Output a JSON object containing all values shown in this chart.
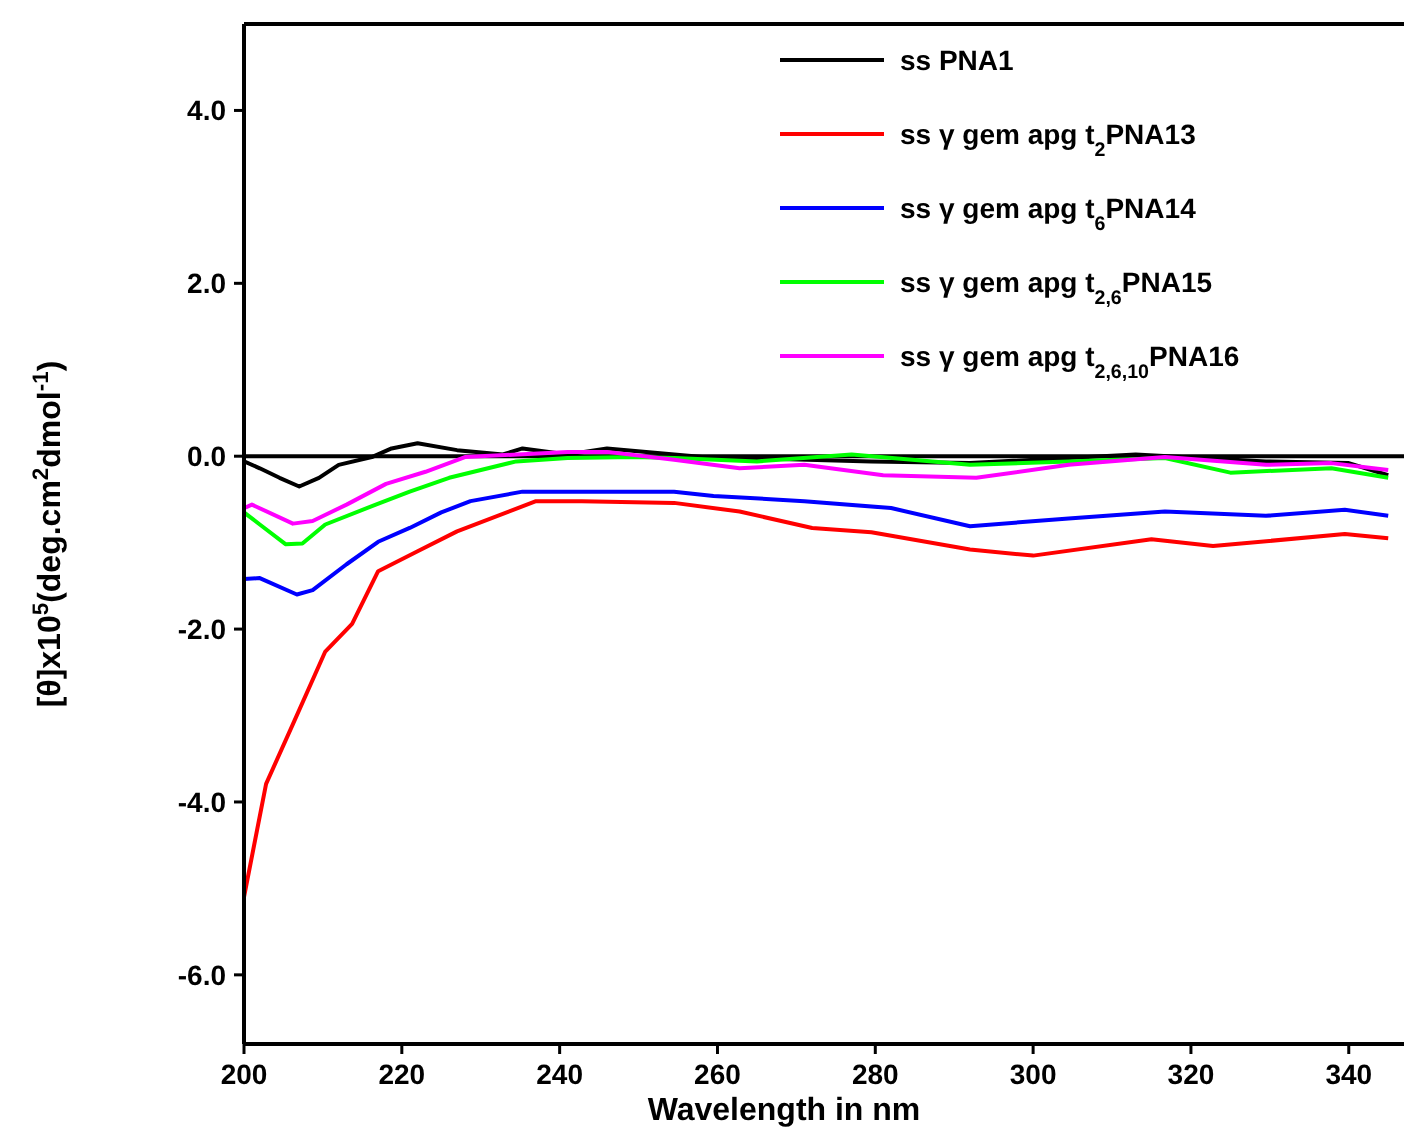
{
  "chart_data": {
    "type": "line",
    "xlabel": "Wavelength in nm",
    "ylabel": "[θ]x10$^{5}$(deg.cm$^{2}$dmol$^{-1}$)",
    "xlim": [
      200,
      347
    ],
    "ylim": [
      -6.8,
      5.0
    ],
    "xticks": [
      200,
      220,
      240,
      260,
      280,
      300,
      320,
      340
    ],
    "yticks": [
      {
        "value": 4,
        "label": "4.0"
      },
      {
        "value": 2,
        "label": "2.0"
      },
      {
        "value": 0,
        "label": "0.0"
      },
      {
        "value": -2,
        "label": "-2.0"
      },
      {
        "value": -4,
        "label": "-4.0"
      },
      {
        "value": -6,
        "label": "-6.0"
      }
    ],
    "grid": false,
    "legend": "top right",
    "marker": "none",
    "line_style": "solid",
    "ref_lines": [
      {
        "axis": "y",
        "value": 0,
        "color": "#000000"
      }
    ],
    "series": [
      {
        "name": "ss PNA1",
        "color": "#000000",
        "x": [
          200,
          202,
          204.5,
          207,
          209.5,
          212,
          216.2,
          218.7,
          222,
          227,
          232.8,
          235.3,
          241,
          246,
          259.5,
          262.8,
          279.5,
          292,
          313,
          329.5,
          340,
          345
        ],
        "values": [
          -0.06,
          -0.14,
          -0.25,
          -0.35,
          -0.25,
          -0.1,
          -0.01,
          0.09,
          0.15,
          0.07,
          0.02,
          0.09,
          0.02,
          0.09,
          -0.02,
          -0.02,
          -0.06,
          -0.08,
          0.02,
          -0.06,
          -0.08,
          -0.22
        ]
      },
      {
        "name": "ss γ gem apg t$_{2}$PNA13",
        "color": "#ff0000",
        "x": [
          200,
          202.8,
          206.2,
          210.3,
          213.7,
          217,
          222,
          227,
          237,
          242.8,
          254.5,
          262.8,
          272,
          279.5,
          292,
          300,
          315,
          322.8,
          339.5,
          345
        ],
        "values": [
          -5.1,
          -3.79,
          -3.1,
          -2.26,
          -1.94,
          -1.33,
          -1.1,
          -0.87,
          -0.52,
          -0.52,
          -0.54,
          -0.64,
          -0.83,
          -0.88,
          -1.08,
          -1.15,
          -0.96,
          -1.04,
          -0.9,
          -0.95
        ]
      },
      {
        "name": "ss γ gem apg t$_{6}$PNA14",
        "color": "#0000ff",
        "x": [
          200,
          202,
          206.7,
          208.7,
          213,
          217,
          221,
          225,
          228.7,
          235.3,
          246,
          254.5,
          259.5,
          271,
          282,
          292,
          304.5,
          316.7,
          329.5,
          339.5,
          345
        ],
        "values": [
          -1.42,
          -1.41,
          -1.6,
          -1.55,
          -1.25,
          -0.99,
          -0.83,
          -0.65,
          -0.52,
          -0.41,
          -0.41,
          -0.41,
          -0.46,
          -0.52,
          -0.6,
          -0.81,
          -0.72,
          -0.64,
          -0.69,
          -0.62,
          -0.69
        ]
      },
      {
        "name": "ss γ gem apg t$_{2,6}$PNA15",
        "color": "#00ff00",
        "x": [
          200,
          202,
          205.3,
          207.4,
          210.3,
          216.7,
          221,
          226,
          234.5,
          241,
          249.5,
          254.5,
          265,
          277,
          292,
          304.5,
          316.7,
          325,
          337.8,
          345
        ],
        "values": [
          -0.65,
          -0.79,
          -1.02,
          -1.01,
          -0.79,
          -0.56,
          -0.41,
          -0.25,
          -0.06,
          -0.02,
          -0.01,
          -0.02,
          -0.06,
          0.02,
          -0.1,
          -0.06,
          -0.02,
          -0.19,
          -0.14,
          -0.25
        ]
      },
      {
        "name": "ss γ gem apg t$_{2,6,10}$PNA16",
        "color": "#ff00ff",
        "x": [
          200,
          201,
          206.2,
          208.7,
          213,
          218,
          223,
          228,
          241,
          246,
          254.5,
          262.8,
          271,
          281,
          292.8,
          304.5,
          316.7,
          329.5,
          337.8,
          345
        ],
        "values": [
          -0.6,
          -0.56,
          -0.78,
          -0.75,
          -0.56,
          -0.32,
          -0.18,
          -0.01,
          0.05,
          0.05,
          -0.04,
          -0.14,
          -0.1,
          -0.22,
          -0.25,
          -0.1,
          -0.01,
          -0.1,
          -0.08,
          -0.16
        ]
      }
    ]
  }
}
